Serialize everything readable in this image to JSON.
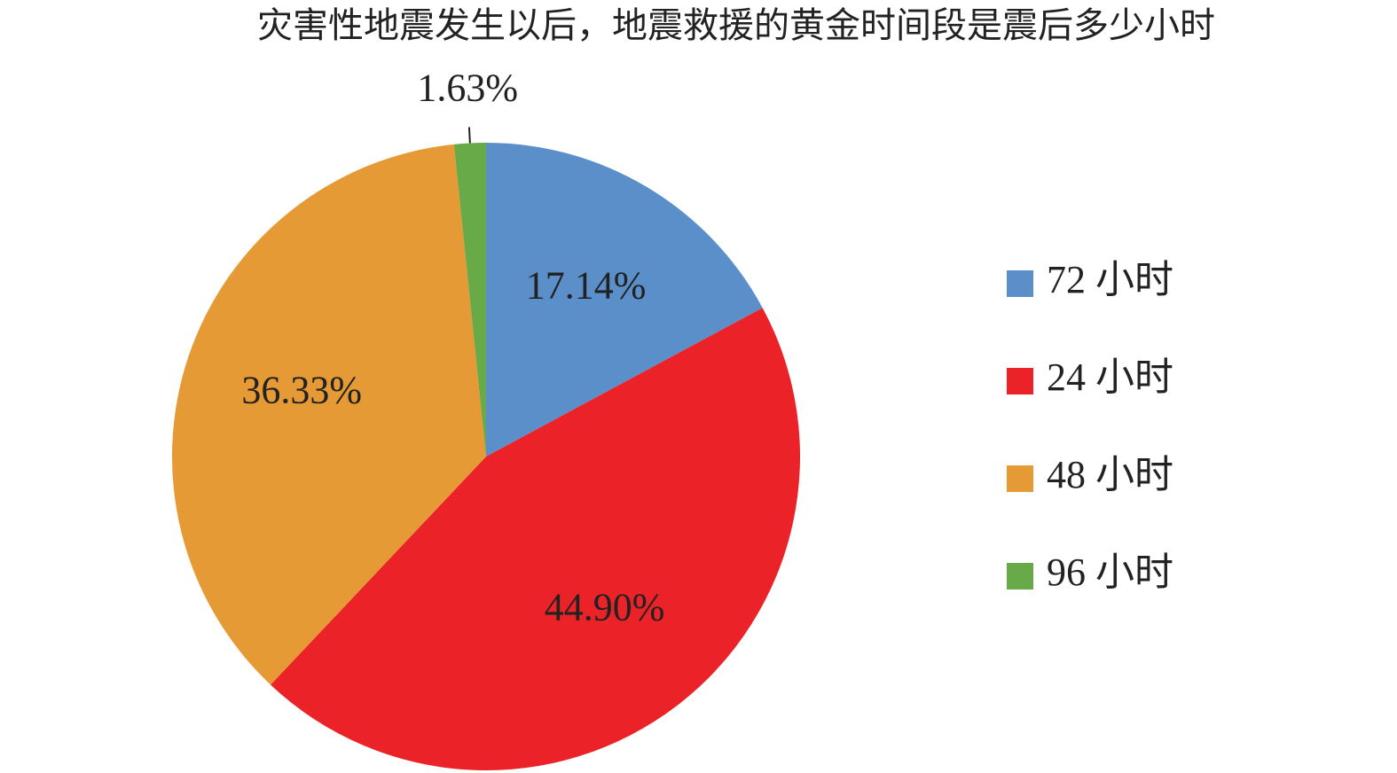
{
  "chart_data": {
    "type": "pie",
    "title": "灾害性地震发生以后，地震救援的黄金时间段是震后多少小时",
    "categories": [
      "72 小时",
      "24 小时",
      "48 小时",
      "96 小时"
    ],
    "values": [
      17.14,
      44.9,
      36.33,
      1.63
    ],
    "value_labels": [
      "17.14%",
      "44.90%",
      "36.33%",
      "1.63%"
    ],
    "colors": [
      "#5b8fca",
      "#ec2229",
      "#e59a35",
      "#67aa47"
    ],
    "legend": "right"
  }
}
